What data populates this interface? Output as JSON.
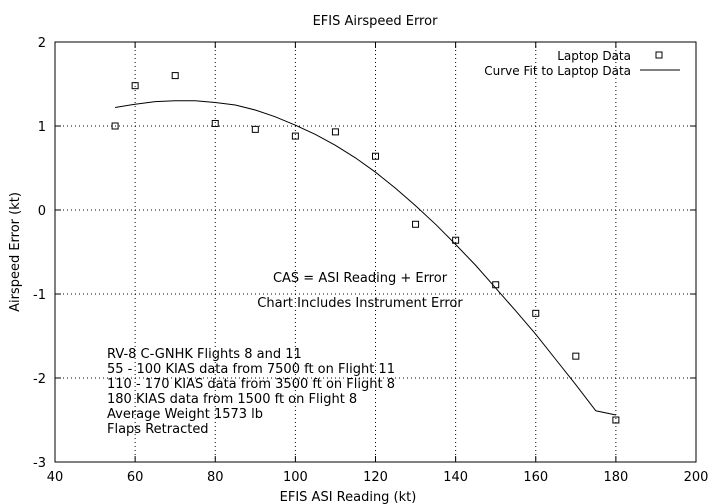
{
  "chart_data": {
    "type": "scatter",
    "title": "EFIS Airspeed Error",
    "xlabel": "EFIS ASI Reading (kt)",
    "ylabel": "Airspeed Error (kt)",
    "xlim": [
      40,
      200
    ],
    "ylim": [
      -3,
      2
    ],
    "xticks": [
      40,
      60,
      80,
      100,
      120,
      140,
      160,
      180,
      200
    ],
    "yticks": [
      -3,
      -2,
      -1,
      0,
      1,
      2
    ],
    "grid": true,
    "legend_position": "top-right",
    "series": [
      {
        "name": "Laptop Data",
        "kind": "points",
        "marker": "square",
        "x": [
          55,
          60,
          70,
          80,
          90,
          100,
          110,
          120,
          130,
          140,
          150,
          160,
          170,
          180
        ],
        "y": [
          1.0,
          1.48,
          1.6,
          1.03,
          0.96,
          0.88,
          0.93,
          0.64,
          -0.17,
          -0.36,
          -0.89,
          -1.23,
          -1.74,
          -2.5
        ]
      },
      {
        "name": "Curve Fit to Laptop Data",
        "kind": "line",
        "x": [
          55,
          60,
          65,
          70,
          75,
          80,
          85,
          90,
          95,
          100,
          105,
          110,
          115,
          120,
          125,
          130,
          135,
          140,
          145,
          150,
          155,
          160,
          165,
          170,
          175,
          180
        ],
        "y": [
          1.22,
          1.26,
          1.29,
          1.3,
          1.3,
          1.28,
          1.25,
          1.19,
          1.11,
          1.01,
          0.9,
          0.77,
          0.62,
          0.45,
          0.26,
          0.05,
          -0.17,
          -0.41,
          -0.66,
          -0.93,
          -1.2,
          -1.48,
          -1.78,
          -2.08,
          -2.39,
          -2.44
        ]
      }
    ],
    "annotations": [
      "CAS = ASI Reading + Error",
      "Chart Includes Instrument Error"
    ],
    "notes": [
      "RV-8 C-GNHK Flights 8 and 11",
      "55 - 100 KIAS data from 7500 ft on Flight 11",
      "110 - 170 KIAS data from 3500 ft on Flight 8",
      "180 KIAS data from 1500 ft on Flight 8",
      "Average Weight 1573 lb",
      "Flaps Retracted"
    ]
  }
}
